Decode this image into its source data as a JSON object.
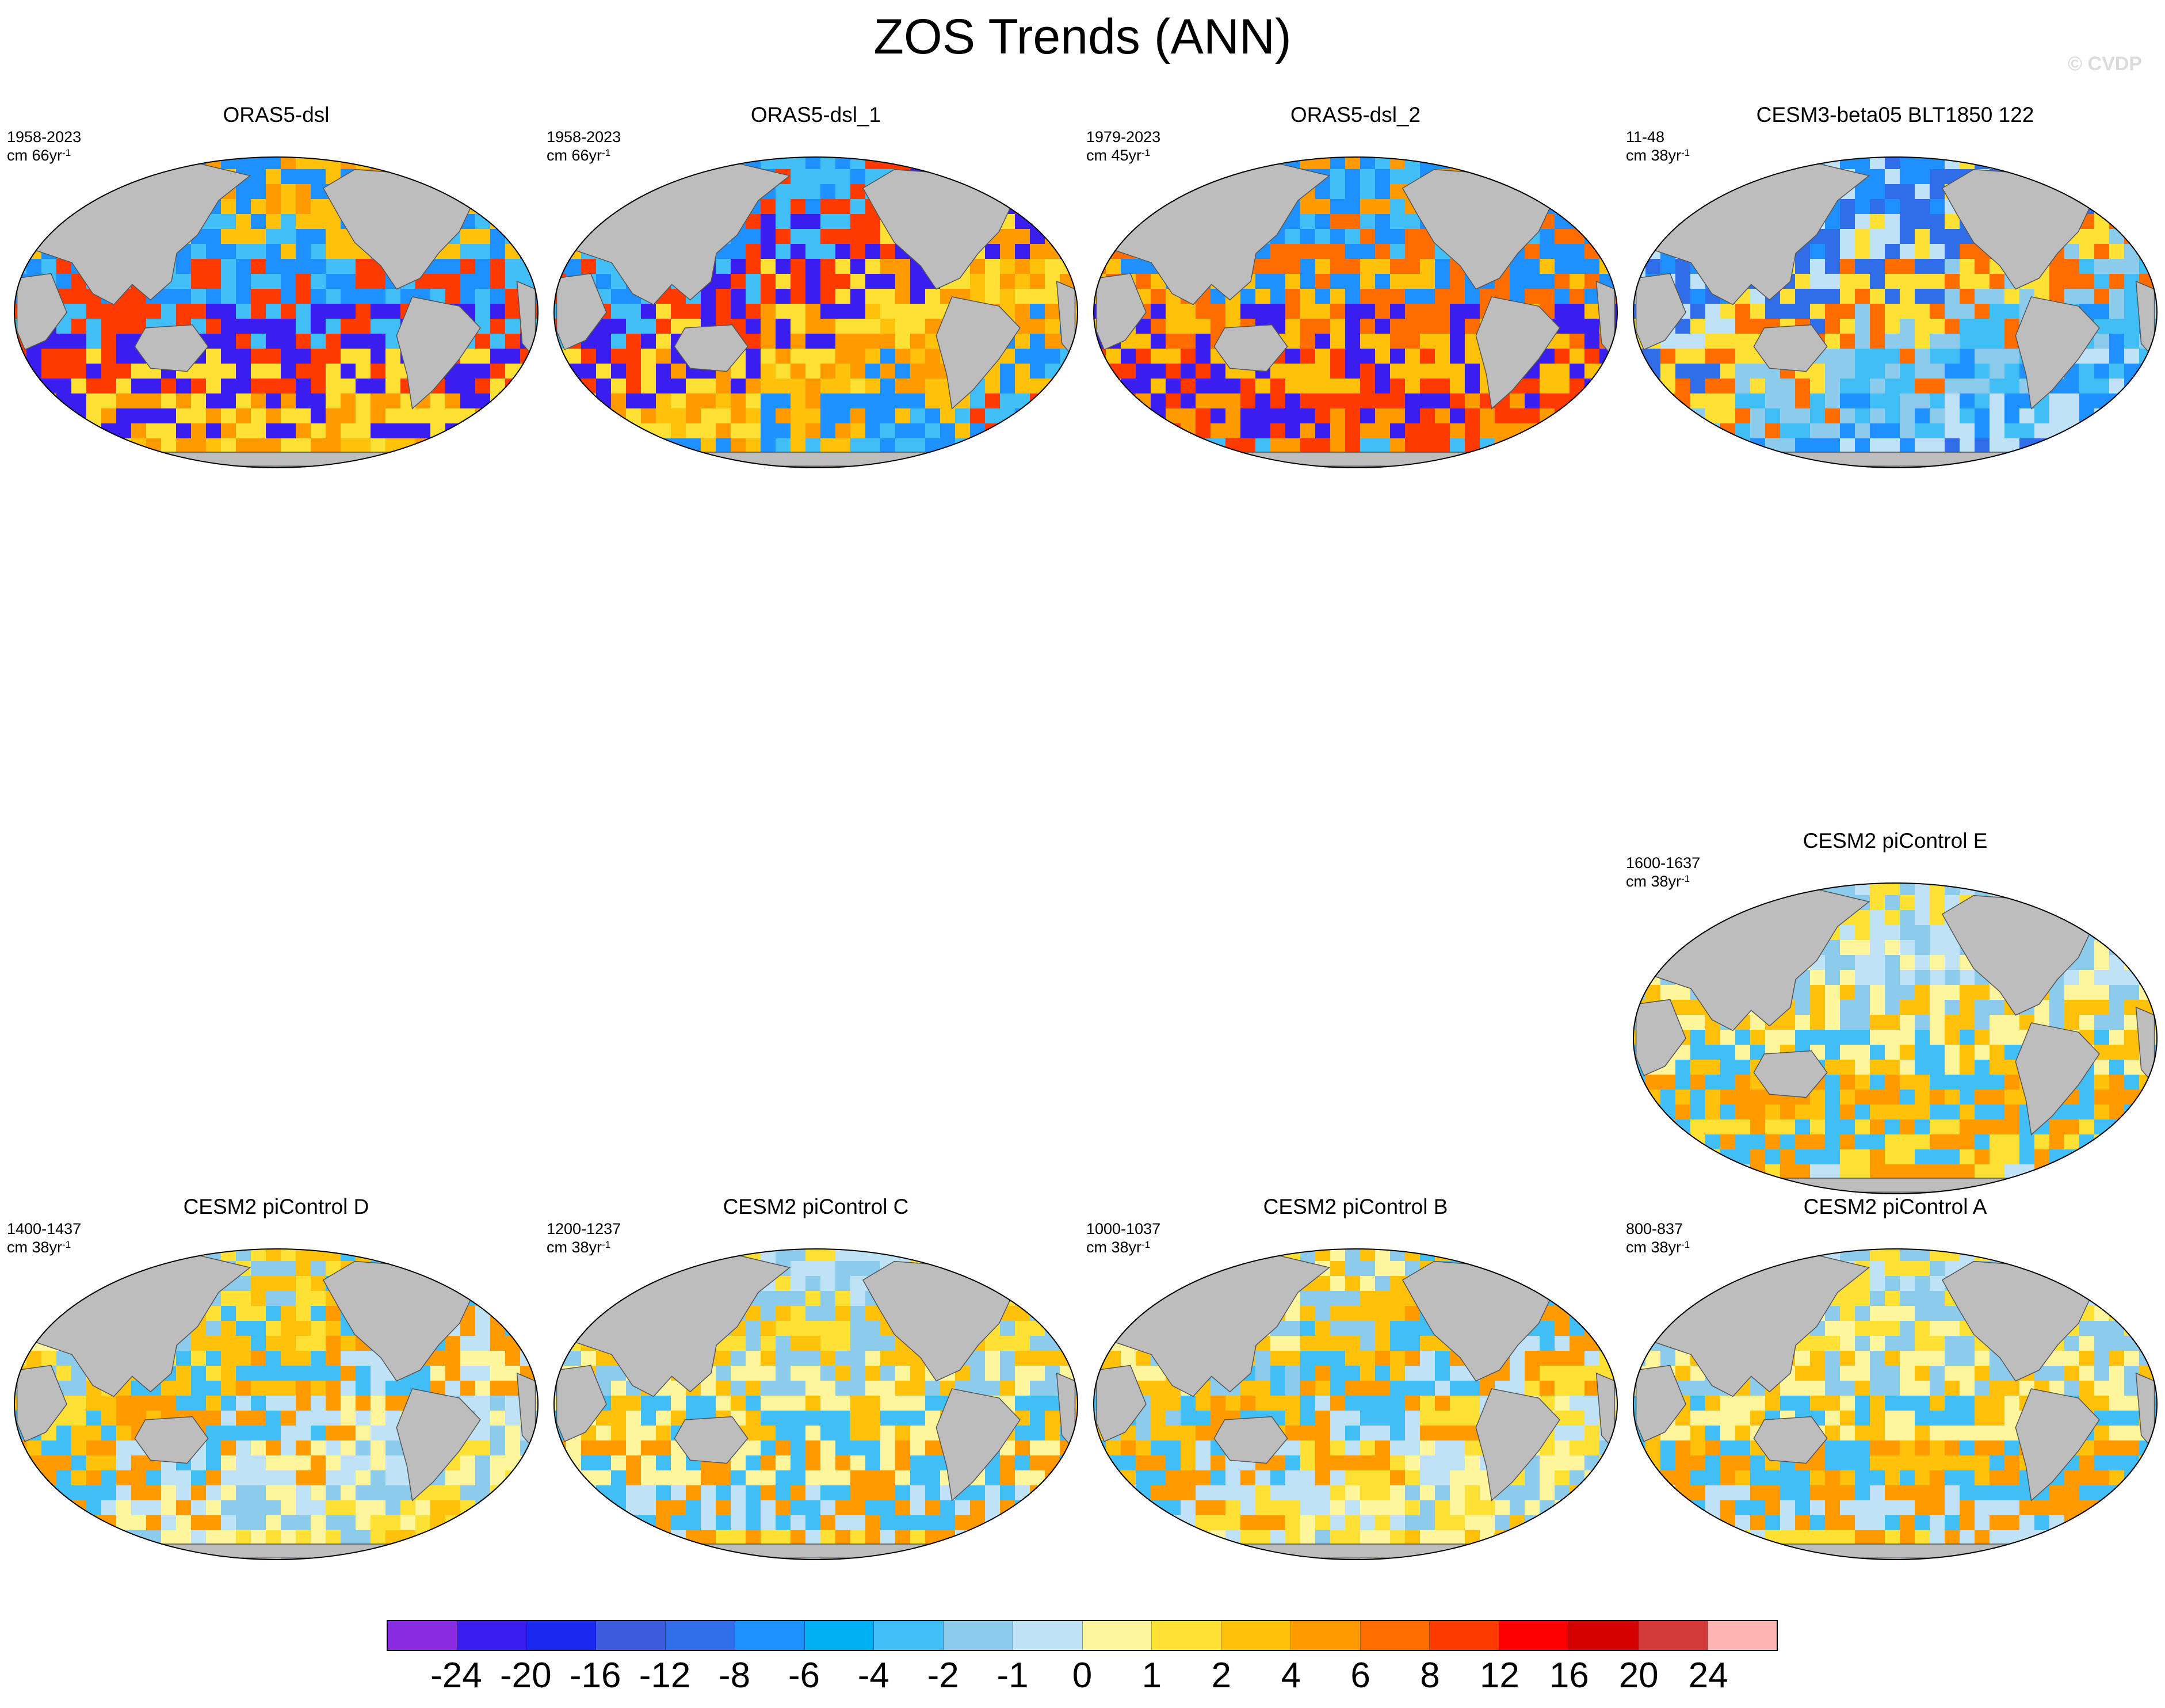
{
  "title": "ZOS Trends (ANN)",
  "watermark": "© CVDP",
  "colors": {
    "land": "#bdbdbd",
    "ocean_outline": "#000000",
    "colorbar": [
      "#8a2be2",
      "#3a1ef0",
      "#1a28f0",
      "#3c5adc",
      "#2f6ee8",
      "#1e90ff",
      "#00b0f5",
      "#40bef5",
      "#8ccbec",
      "#bfe2f6",
      "#fff59d",
      "#ffe135",
      "#ffc10a",
      "#ff9a00",
      "#ff6d00",
      "#ff3a00",
      "#ff0000",
      "#d40000",
      "#d43a3a",
      "#ffb4b4"
    ]
  },
  "panels": [
    {
      "title": "ORAS5-dsl",
      "period": "1958-2023",
      "units": "cm 66yr",
      "units_exp": "-1",
      "palette": [
        "#ff9a00",
        "#ffc10a",
        "#1e90ff",
        "#40bef5",
        "#ff3a00",
        "#3a1ef0",
        "#ffe135"
      ]
    },
    {
      "title": "ORAS5-dsl_1",
      "period": "1958-2023",
      "units": "cm 66yr",
      "units_exp": "-1",
      "palette": [
        "#ff9a00",
        "#ffc10a",
        "#1e90ff",
        "#40bef5",
        "#ff3a00",
        "#3a1ef0",
        "#ffe135"
      ]
    },
    {
      "title": "ORAS5-dsl_2",
      "period": "1979-2023",
      "units": "cm 45yr",
      "units_exp": "-1",
      "palette": [
        "#ff9a00",
        "#40bef5",
        "#1e90ff",
        "#ff6d00",
        "#ffc10a",
        "#3a1ef0",
        "#ff3a00"
      ]
    },
    {
      "title": "CESM3-beta05 BLT1850 122",
      "period": "11-48",
      "units": "cm 38yr",
      "units_exp": "-1",
      "palette": [
        "#8ccbec",
        "#40bef5",
        "#1e90ff",
        "#bfe2f6",
        "#2f6ee8",
        "#ffe135",
        "#ff6d00"
      ]
    },
    {
      "title": "CESM2 piControl E",
      "period": "1600-1637",
      "units": "cm 38yr",
      "units_exp": "-1",
      "palette": [
        "#ffe135",
        "#bfe2f6",
        "#8ccbec",
        "#fff59d",
        "#ffc10a",
        "#40bef5",
        "#ff9a00"
      ]
    },
    {
      "title": "CESM2 piControl D",
      "period": "1400-1437",
      "units": "cm 38yr",
      "units_exp": "-1",
      "palette": [
        "#bfe2f6",
        "#fff59d",
        "#8ccbec",
        "#ffe135",
        "#ffc10a",
        "#40bef5",
        "#ff9a00"
      ]
    },
    {
      "title": "CESM2 piControl C",
      "period": "1200-1237",
      "units": "cm 38yr",
      "units_exp": "-1",
      "palette": [
        "#bfe2f6",
        "#ffe135",
        "#8ccbec",
        "#ffc10a",
        "#fff59d",
        "#40bef5",
        "#ff9a00"
      ]
    },
    {
      "title": "CESM2 piControl B",
      "period": "1000-1037",
      "units": "cm 38yr",
      "units_exp": "-1",
      "palette": [
        "#bfe2f6",
        "#ffe135",
        "#fff59d",
        "#8ccbec",
        "#ffc10a",
        "#40bef5",
        "#ff9a00"
      ]
    },
    {
      "title": "CESM2 piControl A",
      "period": "800-837",
      "units": "cm 38yr",
      "units_exp": "-1",
      "palette": [
        "#bfe2f6",
        "#ffe135",
        "#8ccbec",
        "#fff59d",
        "#ffc10a",
        "#40bef5",
        "#ff9a00"
      ]
    }
  ],
  "colorbar_labels": [
    "-24",
    "-20",
    "-16",
    "-12",
    "-8",
    "-6",
    "-4",
    "-2",
    "-1",
    "0",
    "1",
    "2",
    "4",
    "6",
    "8",
    "12",
    "16",
    "20",
    "24"
  ]
}
